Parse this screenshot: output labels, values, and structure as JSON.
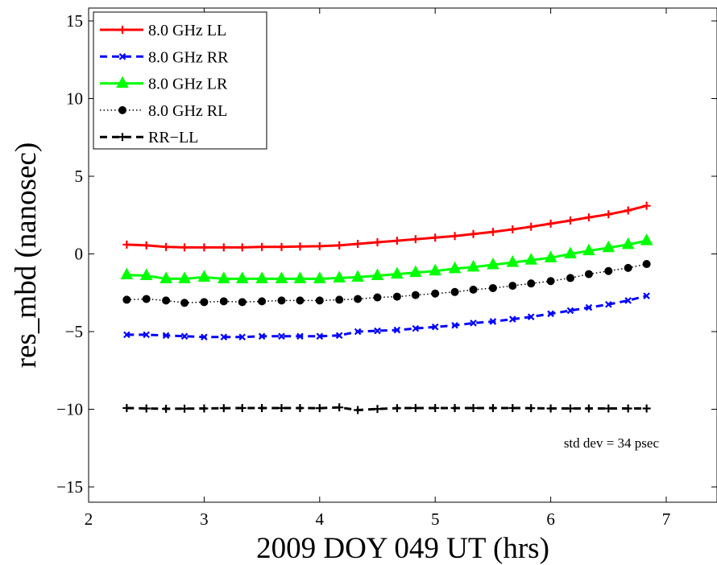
{
  "chart_data": {
    "type": "line",
    "xlabel": "2009 DOY 049 UT (hrs)",
    "ylabel": "res_mbd (nanosec)",
    "xlim": [
      2,
      7.5
    ],
    "ylim": [
      -16,
      16
    ],
    "xticks": [
      2,
      3,
      4,
      5,
      6,
      7
    ],
    "yticks": [
      -15,
      -10,
      -5,
      0,
      5,
      10,
      15
    ],
    "xtick_labels": [
      "2",
      "3",
      "4",
      "5",
      "6",
      "7"
    ],
    "ytick_labels": [
      "−15",
      "−10",
      "−5",
      "0",
      "5",
      "10",
      "15"
    ],
    "grid": false,
    "legend_position": "top-left",
    "annotation": "std dev = 34 psec",
    "x": [
      2.33,
      2.5,
      2.67,
      2.83,
      3.0,
      3.17,
      3.33,
      3.5,
      3.67,
      3.83,
      4.0,
      4.17,
      4.33,
      4.5,
      4.67,
      4.83,
      5.0,
      5.17,
      5.33,
      5.5,
      5.67,
      5.83,
      6.0,
      6.17,
      6.33,
      6.5,
      6.67,
      6.83
    ],
    "series": [
      {
        "name": "8.0 GHz LL",
        "color": "#ff0000",
        "dash": "solid",
        "marker": "plus",
        "values": [
          0.6,
          0.55,
          0.45,
          0.42,
          0.42,
          0.42,
          0.42,
          0.45,
          0.45,
          0.48,
          0.5,
          0.55,
          0.65,
          0.75,
          0.85,
          0.95,
          1.05,
          1.15,
          1.28,
          1.42,
          1.58,
          1.75,
          1.95,
          2.15,
          2.35,
          2.55,
          2.8,
          3.1
        ]
      },
      {
        "name": "8.0 GHz RR",
        "color": "#0000ff",
        "dash": "dashed",
        "marker": "x",
        "values": [
          -5.2,
          -5.2,
          -5.25,
          -5.3,
          -5.35,
          -5.35,
          -5.35,
          -5.3,
          -5.3,
          -5.3,
          -5.3,
          -5.25,
          -5.0,
          -4.95,
          -4.9,
          -4.8,
          -4.7,
          -4.6,
          -4.45,
          -4.35,
          -4.2,
          -4.05,
          -3.85,
          -3.65,
          -3.45,
          -3.25,
          -3.0,
          -2.7
        ]
      },
      {
        "name": "8.0 GHz LR",
        "color": "#00ff00",
        "dash": "solid",
        "marker": "triangle",
        "values": [
          -1.35,
          -1.4,
          -1.6,
          -1.6,
          -1.5,
          -1.6,
          -1.6,
          -1.6,
          -1.6,
          -1.6,
          -1.6,
          -1.55,
          -1.5,
          -1.4,
          -1.3,
          -1.2,
          -1.1,
          -0.95,
          -0.85,
          -0.7,
          -0.55,
          -0.4,
          -0.25,
          0.0,
          0.2,
          0.4,
          0.6,
          0.85
        ]
      },
      {
        "name": "8.0 GHz RL",
        "color": "#000000",
        "dash": "dotted",
        "marker": "dot",
        "values": [
          -2.95,
          -2.9,
          -3.0,
          -3.15,
          -3.1,
          -3.05,
          -3.1,
          -3.05,
          -3.0,
          -3.0,
          -3.0,
          -2.95,
          -2.9,
          -2.8,
          -2.75,
          -2.65,
          -2.55,
          -2.45,
          -2.3,
          -2.2,
          -2.05,
          -1.9,
          -1.75,
          -1.55,
          -1.3,
          -1.1,
          -0.9,
          -0.65
        ]
      },
      {
        "name": "RR−LL",
        "color": "#000000",
        "dash": "dashed",
        "marker": "plus",
        "values": [
          -9.92,
          -9.95,
          -9.97,
          -9.96,
          -9.95,
          -9.93,
          -9.92,
          -9.92,
          -9.92,
          -9.92,
          -9.93,
          -9.88,
          -10.05,
          -9.98,
          -9.93,
          -9.92,
          -9.92,
          -9.92,
          -9.92,
          -9.92,
          -9.92,
          -9.93,
          -9.95,
          -9.95,
          -9.95,
          -9.95,
          -9.95,
          -9.95
        ]
      }
    ]
  }
}
